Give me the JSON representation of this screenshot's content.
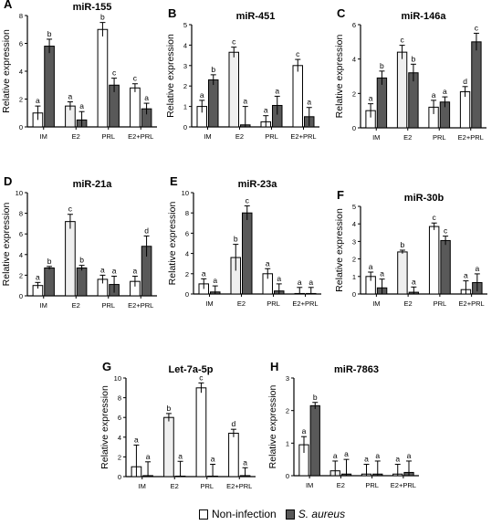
{
  "colors": {
    "non_infection": "#ffffff",
    "s_aureus": "#595959",
    "e2_fill": "#efefef"
  },
  "legend": {
    "non_infection_label": "Non-infection",
    "s_aureus_label": "S. aureus"
  },
  "chart_data": [
    {
      "panel": "A",
      "title": "miR-155",
      "type": "bar",
      "ylabel": "Relative expression",
      "categories": [
        "IM",
        "E2",
        "PRL",
        "E2+PRL"
      ],
      "yticks": [
        0,
        2,
        4,
        6,
        8
      ],
      "ylim": [
        0,
        8
      ],
      "series": [
        {
          "name": "Non-infection",
          "values": [
            1.0,
            1.5,
            7.0,
            2.8
          ],
          "errors": [
            0.5,
            0.3,
            0.5,
            0.3
          ],
          "letters": [
            "a",
            "a",
            "b",
            "c"
          ]
        },
        {
          "name": "S. aureus",
          "values": [
            5.8,
            0.5,
            3.0,
            1.3
          ],
          "errors": [
            0.5,
            0.6,
            0.5,
            0.4
          ],
          "letters": [
            "b",
            "a",
            "c",
            "a"
          ]
        }
      ]
    },
    {
      "panel": "B",
      "title": "miR-451",
      "type": "bar",
      "ylabel": "Relative expression",
      "categories": [
        "IM",
        "E2",
        "PRL",
        "E2+PRL"
      ],
      "yticks": [
        0,
        1,
        2,
        3,
        4,
        5
      ],
      "ylim": [
        0,
        5
      ],
      "series": [
        {
          "name": "Non-infection",
          "values": [
            1.0,
            3.65,
            0.25,
            3.0
          ],
          "errors": [
            0.3,
            0.25,
            0.3,
            0.3
          ],
          "letters": [
            "a",
            "c",
            "a",
            "c"
          ]
        },
        {
          "name": "S. aureus",
          "values": [
            2.3,
            0.1,
            1.05,
            0.5
          ],
          "errors": [
            0.25,
            0.9,
            0.45,
            0.45
          ],
          "letters": [
            "b",
            "a",
            "a",
            "a"
          ]
        }
      ]
    },
    {
      "panel": "C",
      "title": "miR-146a",
      "type": "bar",
      "ylabel": "Relative expression",
      "categories": [
        "IM",
        "E2",
        "PRL",
        "E2+PRL"
      ],
      "yticks": [
        0,
        2,
        4,
        6
      ],
      "ylim": [
        0,
        6
      ],
      "series": [
        {
          "name": "Non-infection",
          "values": [
            1.0,
            4.4,
            1.2,
            2.1
          ],
          "errors": [
            0.4,
            0.4,
            0.4,
            0.3
          ],
          "letters": [
            "a",
            "c",
            "a",
            "d"
          ]
        },
        {
          "name": "S. aureus",
          "values": [
            2.9,
            3.2,
            1.5,
            5.0
          ],
          "errors": [
            0.4,
            0.5,
            0.3,
            0.5
          ],
          "letters": [
            "b",
            "b",
            "a",
            "c"
          ]
        }
      ]
    },
    {
      "panel": "D",
      "title": "miR-21a",
      "type": "bar",
      "ylabel": "Relative expression",
      "categories": [
        "IM",
        "E2",
        "PRL",
        "E2+PRL"
      ],
      "yticks": [
        0,
        2,
        4,
        6,
        8,
        10
      ],
      "ylim": [
        0,
        10
      ],
      "series": [
        {
          "name": "Non-infection",
          "values": [
            1.0,
            7.2,
            1.6,
            1.4
          ],
          "errors": [
            0.3,
            0.7,
            0.4,
            0.5
          ],
          "letters": [
            "a",
            "c",
            "a",
            "a"
          ]
        },
        {
          "name": "S. aureus",
          "values": [
            2.7,
            2.7,
            1.1,
            4.8
          ],
          "errors": [
            0.15,
            0.25,
            0.8,
            1.0
          ],
          "letters": [
            "b",
            "b",
            "a",
            "d"
          ]
        }
      ]
    },
    {
      "panel": "E",
      "title": "miR-23a",
      "type": "bar",
      "ylabel": "Relative expression",
      "categories": [
        "IM",
        "E2",
        "PRL",
        "E2+PRL"
      ],
      "yticks": [
        0,
        2,
        4,
        6,
        8,
        10
      ],
      "ylim": [
        0,
        10
      ],
      "series": [
        {
          "name": "Non-infection",
          "values": [
            1.0,
            3.6,
            2.0,
            0.05
          ],
          "errors": [
            0.5,
            1.3,
            0.5,
            0.6
          ],
          "letters": [
            "a",
            "b",
            "a",
            "a"
          ]
        },
        {
          "name": "S. aureus",
          "values": [
            0.2,
            8.0,
            0.3,
            0.05
          ],
          "errors": [
            0.6,
            0.7,
            0.7,
            0.6
          ],
          "letters": [
            "a",
            "c",
            "a",
            "a"
          ]
        }
      ]
    },
    {
      "panel": "F",
      "title": "miR-30b",
      "type": "bar",
      "ylabel": "Relative expression",
      "categories": [
        "IM",
        "E2",
        "PRL",
        "E2+PRL"
      ],
      "yticks": [
        0,
        1,
        2,
        3,
        4,
        5
      ],
      "ylim": [
        0,
        5
      ],
      "series": [
        {
          "name": "Non-infection",
          "values": [
            1.0,
            2.4,
            3.85,
            0.25
          ],
          "errors": [
            0.25,
            0.1,
            0.2,
            0.5
          ],
          "letters": [
            "a",
            "b",
            "c",
            "a"
          ]
        },
        {
          "name": "S. aureus",
          "values": [
            0.35,
            0.1,
            3.05,
            0.65
          ],
          "errors": [
            0.5,
            0.3,
            0.25,
            0.5
          ],
          "letters": [
            "a",
            "a",
            "c",
            "a"
          ]
        }
      ]
    },
    {
      "panel": "G",
      "title": "Let-7a-5p",
      "type": "bar",
      "ylabel": "Relative expression",
      "categories": [
        "IM",
        "E2",
        "PRL",
        "E2+PRL"
      ],
      "yticks": [
        0,
        2,
        4,
        6,
        8,
        10
      ],
      "ylim": [
        0,
        10
      ],
      "series": [
        {
          "name": "Non-infection",
          "values": [
            1.0,
            6.0,
            9.0,
            4.4
          ],
          "errors": [
            2.2,
            0.4,
            0.5,
            0.4
          ],
          "letters": [
            "a",
            "b",
            "c",
            "d"
          ]
        },
        {
          "name": "S. aureus",
          "values": [
            0.1,
            0.05,
            0.05,
            0.1
          ],
          "errors": [
            1.4,
            1.5,
            1.2,
            0.8
          ],
          "letters": [
            "a",
            "a",
            "a",
            "a"
          ]
        }
      ]
    },
    {
      "panel": "H",
      "title": "miR-7863",
      "type": "bar",
      "ylabel": "Relative expression",
      "categories": [
        "IM",
        "E2",
        "PRL",
        "E2+PRL"
      ],
      "yticks": [
        0,
        1,
        2,
        3
      ],
      "ylim": [
        0,
        3
      ],
      "series": [
        {
          "name": "Non-infection",
          "values": [
            0.95,
            0.15,
            0.05,
            0.05
          ],
          "errors": [
            0.25,
            0.3,
            0.3,
            0.3
          ],
          "letters": [
            "a",
            "a",
            "a",
            "a"
          ]
        },
        {
          "name": "S. aureus",
          "values": [
            2.15,
            0.05,
            0.05,
            0.1
          ],
          "errors": [
            0.1,
            0.45,
            0.4,
            0.35
          ],
          "letters": [
            "b",
            "a",
            "a",
            "a"
          ]
        }
      ]
    }
  ]
}
